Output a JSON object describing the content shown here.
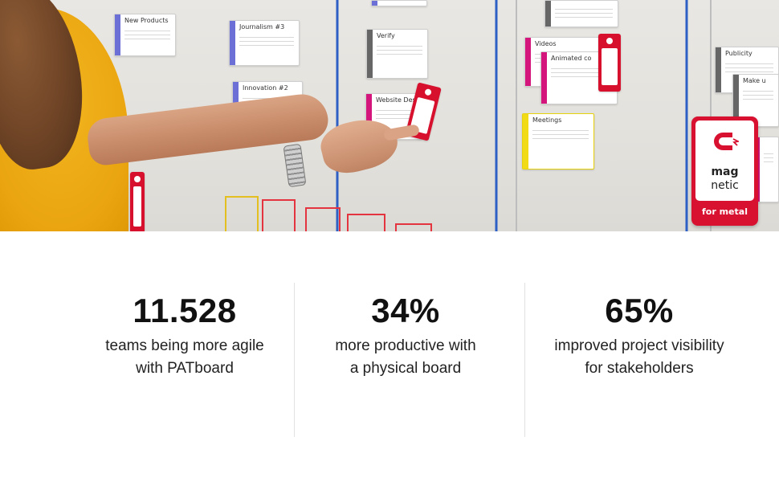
{
  "photo": {
    "cards": [
      {
        "title": "New Products"
      },
      {
        "title": "Journalism #3"
      },
      {
        "title": "Verify"
      },
      {
        "title": "Innovation #2"
      },
      {
        "title": "Website Desig"
      },
      {
        "title": "Videos"
      },
      {
        "title": "Animated co"
      },
      {
        "title": "Meetings"
      },
      {
        "title": "Publicity"
      },
      {
        "title": "Make u"
      }
    ],
    "badge": {
      "line1": "mag",
      "line2": "netic",
      "footer": "for metal",
      "icon": "magnet-icon",
      "color": "#d81130"
    }
  },
  "stats": [
    {
      "value": "11.528",
      "line1": "teams being more agile",
      "line2": "with PATboard"
    },
    {
      "value": "34%",
      "line1": "more productive with",
      "line2": "a physical board"
    },
    {
      "value": "65%",
      "line1": "improved project visibility",
      "line2": "for stakeholders"
    }
  ]
}
